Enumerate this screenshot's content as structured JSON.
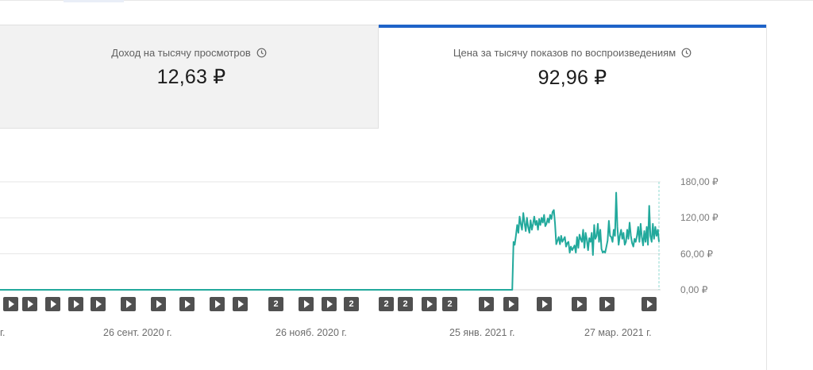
{
  "tabs": [
    {
      "label": "Доход на тысячу просмотров",
      "value": "12,63 ₽",
      "icon": "clock-icon",
      "selected": false
    },
    {
      "label": "Цена за тысячу показов по воспроизведениям",
      "value": "92,96 ₽",
      "icon": "clock-icon",
      "selected": true
    }
  ],
  "colors": {
    "line": "#22a99c",
    "selected_tab": "#1f63c8",
    "marker": "#505050"
  },
  "chart_data": {
    "type": "line",
    "series": [
      {
        "values": [
          0,
          0,
          0,
          0,
          0,
          0,
          0,
          0,
          0,
          0,
          0,
          0,
          0,
          0,
          0,
          0,
          0,
          0,
          0,
          0,
          0,
          0,
          0,
          0,
          0,
          0,
          0,
          0,
          0,
          0,
          0,
          0,
          0,
          0,
          0,
          0,
          0,
          0,
          0,
          0,
          0,
          0,
          0,
          0,
          0,
          0,
          0,
          0,
          0,
          0,
          0,
          0,
          0,
          0,
          0,
          0,
          0,
          0,
          0,
          0,
          0,
          0,
          0,
          0,
          0,
          0,
          0,
          0,
          0,
          0,
          0,
          0,
          0,
          0,
          0,
          0,
          0,
          0,
          0,
          0,
          0,
          0,
          0,
          0,
          0,
          0,
          0,
          0,
          0,
          0,
          0,
          0,
          0,
          0,
          0,
          0,
          0,
          0,
          0,
          0,
          0,
          0,
          0,
          0,
          0,
          0,
          0,
          0,
          0,
          0,
          0,
          0,
          0,
          0,
          0,
          0,
          0,
          0,
          0,
          0,
          0,
          0,
          0,
          0,
          0,
          0,
          0,
          0,
          0,
          0,
          0,
          0,
          0,
          0,
          0,
          0,
          0,
          0,
          0,
          0,
          0,
          0,
          0,
          0,
          0,
          0,
          0,
          0,
          0,
          0,
          0,
          0,
          0,
          0,
          0,
          0,
          0,
          0,
          0,
          0,
          0,
          0,
          0,
          0,
          0,
          0,
          0,
          0,
          0,
          0,
          0,
          0,
          0,
          0,
          0,
          0,
          0,
          0,
          0,
          0,
          0,
          0,
          0,
          0,
          0,
          0,
          0,
          0,
          0,
          0,
          0,
          0,
          0,
          0,
          0,
          0,
          0,
          0,
          0,
          0,
          0,
          0,
          0,
          0,
          0,
          0,
          0,
          0,
          0,
          0,
          0,
          0,
          0,
          0,
          0,
          0,
          0,
          0,
          0,
          0,
          0,
          0,
          0,
          0,
          0,
          0,
          0,
          0,
          0,
          0,
          0,
          0,
          0,
          0,
          0,
          0,
          0,
          0,
          0,
          0,
          0,
          0,
          0,
          0,
          0,
          0,
          0,
          0,
          0,
          0,
          0,
          0,
          0,
          0,
          0,
          0,
          0,
          0,
          0,
          0,
          0,
          0,
          0,
          0,
          0,
          0,
          0,
          0,
          0,
          0,
          0,
          0,
          0,
          0,
          0,
          0,
          0,
          0,
          0,
          0,
          0,
          0,
          0,
          0,
          0,
          0,
          0,
          0,
          0,
          0,
          0,
          0,
          0,
          0,
          0,
          0,
          0,
          0,
          0,
          0,
          0,
          0,
          0,
          0,
          0,
          0,
          0,
          0,
          0,
          0,
          0,
          0,
          0,
          0,
          0,
          0,
          0,
          0,
          0,
          0,
          0,
          0,
          0,
          0,
          0,
          0,
          0,
          0,
          0,
          0,
          0,
          0,
          0,
          0,
          0,
          0,
          0,
          0,
          0,
          0,
          0,
          0,
          0,
          0,
          0,
          0,
          0,
          0,
          0,
          0,
          0,
          0,
          0,
          0,
          0,
          0,
          0,
          0,
          0,
          0,
          0,
          0,
          0,
          0,
          0,
          0,
          0,
          0,
          0,
          0,
          0,
          0,
          0,
          0,
          0,
          0,
          0,
          0,
          0,
          0,
          0,
          0,
          0,
          0,
          0,
          0,
          0,
          0,
          0,
          0,
          0,
          0,
          0,
          0,
          0,
          0,
          0,
          0,
          0,
          0,
          0,
          0,
          0,
          0,
          0,
          0,
          0,
          0,
          0,
          0,
          0,
          0,
          0,
          0,
          0,
          0,
          0,
          0,
          0,
          0,
          80,
          75,
          90,
          108,
          95,
          122,
          110,
          100,
          128,
          112,
          98,
          120,
          105,
          95,
          116,
          100,
          110,
          122,
          108,
          115,
          100,
          118,
          108,
          120,
          112,
          125,
          106,
          110,
          119,
          112,
          125,
          118,
          130,
          133,
          110,
          76,
          82,
          88,
          76,
          90,
          80,
          84,
          88,
          72,
          78,
          80,
          62,
          72,
          66,
          70,
          74,
          62,
          88,
          70,
          92,
          85,
          80,
          100,
          70,
          95,
          84,
          66,
          86,
          80,
          95,
          58,
          108,
          85,
          90,
          110,
          80,
          100,
          68,
          62,
          64,
          62,
          72,
          82,
          115,
          90,
          88,
          80,
          100,
          90,
          162,
          105,
          75,
          90,
          100,
          85,
          95,
          75,
          80,
          100,
          85,
          112,
          90,
          78,
          72,
          85,
          80,
          90,
          105,
          80,
          110,
          88,
          74,
          98,
          80,
          105,
          75,
          140,
          90,
          80,
          110,
          85,
          105,
          90,
          100,
          80
        ],
        "color": "#22a99c"
      }
    ],
    "x_tick_labels": [
      "г.",
      "26 сент. 2020 г.",
      "26 нояб. 2020 г.",
      "25 янв. 2021 г.",
      "27 мар. 2021 г."
    ],
    "y_tick_labels": [
      "180,00 ₽",
      "120,00 ₽",
      "60,00 ₽",
      "0,00 ₽"
    ],
    "ylim": [
      0,
      180
    ],
    "grid": true,
    "markers": [
      "",
      "",
      "",
      "",
      "",
      "",
      "",
      "",
      "",
      "",
      "2",
      "",
      "",
      "2",
      "2",
      "2",
      "",
      "2",
      "",
      "",
      "",
      "",
      "",
      "",
      "",
      ""
    ]
  }
}
